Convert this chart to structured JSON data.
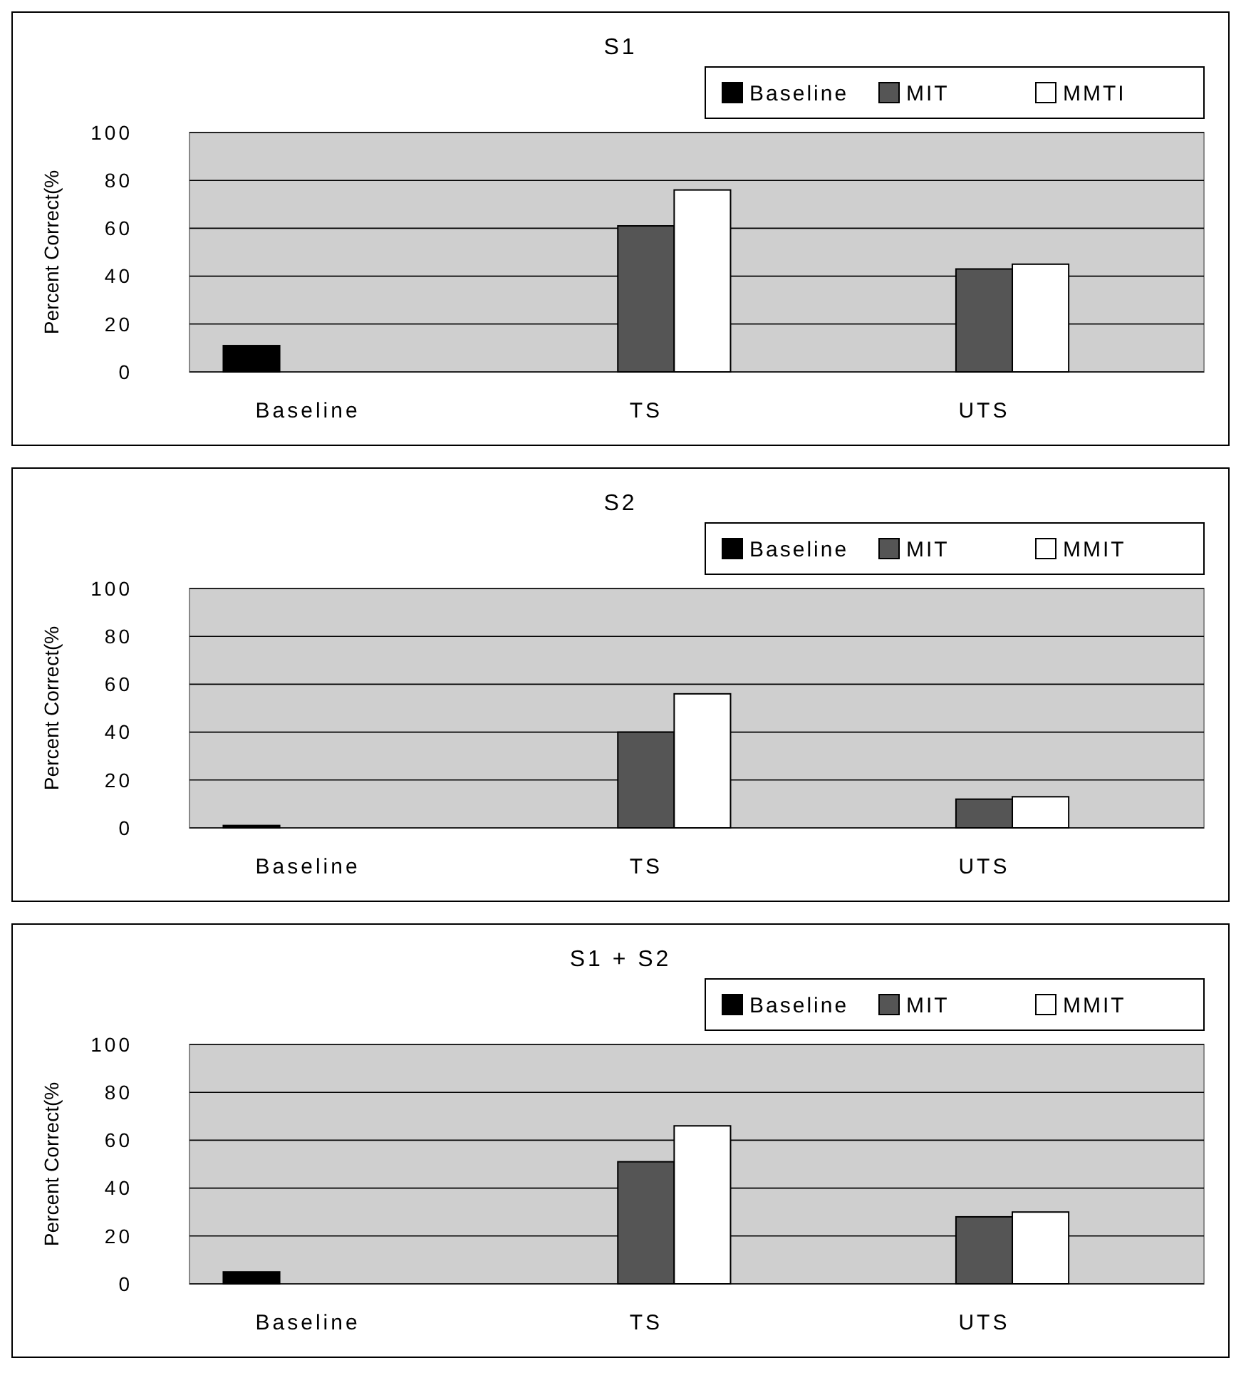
{
  "chart_data": [
    {
      "type": "bar",
      "title": "S1",
      "categories": [
        "Baseline",
        "TS",
        "UTS"
      ],
      "ylabel": "Percent Correct(%",
      "ylim": [
        0,
        100
      ],
      "yticks": [
        0,
        20,
        40,
        60,
        80,
        100
      ],
      "grid": "y",
      "legend": "top right",
      "series": [
        {
          "name": "Baseline",
          "color": "#000000",
          "values": [
            11,
            null,
            null
          ]
        },
        {
          "name": "MIT",
          "color": "#555555",
          "values": [
            null,
            61,
            43
          ]
        },
        {
          "name": "MMTI",
          "color": "#ffffff",
          "values": [
            null,
            76,
            45
          ]
        }
      ]
    },
    {
      "type": "bar",
      "title": "S2",
      "categories": [
        "Baseline",
        "TS",
        "UTS"
      ],
      "ylabel": "Percent Correct(%",
      "ylim": [
        0,
        100
      ],
      "yticks": [
        0,
        20,
        40,
        60,
        80,
        100
      ],
      "grid": "y",
      "legend": "top right",
      "series": [
        {
          "name": "Baseline",
          "color": "#000000",
          "values": [
            1,
            null,
            null
          ]
        },
        {
          "name": "MIT",
          "color": "#555555",
          "values": [
            null,
            40,
            12
          ]
        },
        {
          "name": "MMIT",
          "color": "#ffffff",
          "values": [
            null,
            56,
            13
          ]
        }
      ]
    },
    {
      "type": "bar",
      "title": "S1 + S2",
      "categories": [
        "Baseline",
        "TS",
        "UTS"
      ],
      "ylabel": "Percent Correct(%",
      "ylim": [
        0,
        100
      ],
      "yticks": [
        0,
        20,
        40,
        60,
        80,
        100
      ],
      "grid": "y",
      "legend": "top right",
      "series": [
        {
          "name": "Baseline",
          "color": "#000000",
          "values": [
            5,
            null,
            null
          ]
        },
        {
          "name": "MIT",
          "color": "#555555",
          "values": [
            null,
            51,
            28
          ]
        },
        {
          "name": "MMIT",
          "color": "#ffffff",
          "values": [
            null,
            66,
            30
          ]
        }
      ]
    }
  ]
}
